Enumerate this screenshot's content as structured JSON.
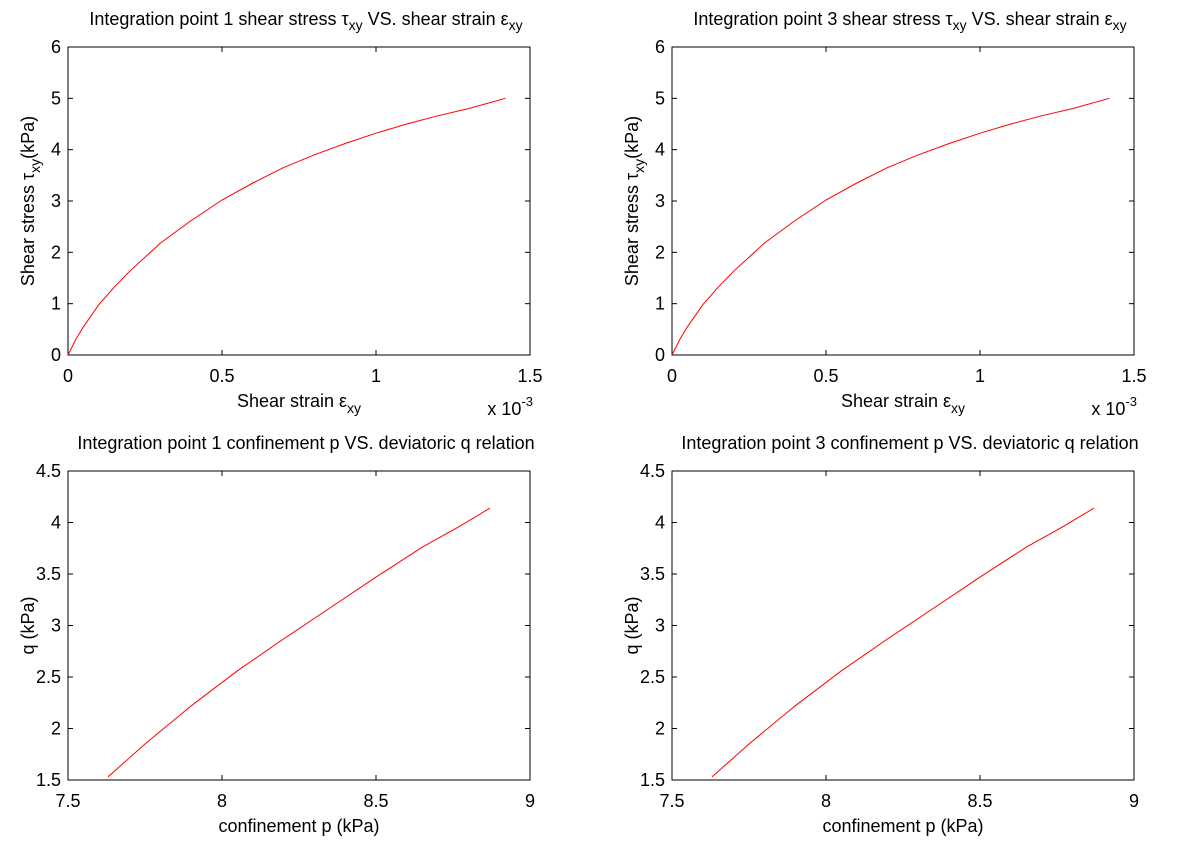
{
  "chart_data": [
    {
      "type": "line",
      "title": {
        "prefix": "Integration point 1 shear stress ",
        "sym1": "τ",
        "sub1": "xy",
        "mid": " VS. shear strain ",
        "sym2": "ε",
        "sub2": "xy"
      },
      "xlabel": {
        "text": "Shear strain ",
        "sym": "ε",
        "sub": "xy"
      },
      "ylabel": {
        "text": "Shear stress ",
        "sym": "τ",
        "sub": "xy",
        "unit": "(kPa)"
      },
      "x_multiplier": {
        "text": "x 10",
        "exp": "-3"
      },
      "xlim": [
        0,
        1.5
      ],
      "ylim": [
        0,
        6
      ],
      "xticks": [
        0,
        0.5,
        1,
        1.5
      ],
      "xtick_labels": [
        "0",
        "0.5",
        "1",
        "1.5"
      ],
      "yticks": [
        0,
        1,
        2,
        3,
        4,
        5,
        6
      ],
      "ytick_labels": [
        "0",
        "1",
        "2",
        "3",
        "4",
        "5",
        "6"
      ],
      "line_color": "#ff0000",
      "series": [
        {
          "x": [
            0,
            0.025,
            0.05,
            0.1,
            0.15,
            0.2,
            0.3,
            0.4,
            0.5,
            0.6,
            0.7,
            0.8,
            0.9,
            1.0,
            1.1,
            1.2,
            1.3,
            1.42
          ],
          "y": [
            0,
            0.3,
            0.55,
            0.98,
            1.32,
            1.63,
            2.18,
            2.62,
            3.02,
            3.35,
            3.65,
            3.9,
            4.12,
            4.32,
            4.5,
            4.66,
            4.8,
            5.0
          ]
        }
      ]
    },
    {
      "type": "line",
      "title": {
        "prefix": "Integration point 3 shear stress ",
        "sym1": "τ",
        "sub1": "xy",
        "mid": " VS. shear strain ",
        "sym2": "ε",
        "sub2": "xy"
      },
      "xlabel": {
        "text": "Shear strain ",
        "sym": "ε",
        "sub": "xy"
      },
      "ylabel": {
        "text": "Shear stress ",
        "sym": "τ",
        "sub": "xy",
        "unit": "(kPa)"
      },
      "x_multiplier": {
        "text": "x 10",
        "exp": "-3"
      },
      "xlim": [
        0,
        1.5
      ],
      "ylim": [
        0,
        6
      ],
      "xticks": [
        0,
        0.5,
        1,
        1.5
      ],
      "xtick_labels": [
        "0",
        "0.5",
        "1",
        "1.5"
      ],
      "yticks": [
        0,
        1,
        2,
        3,
        4,
        5,
        6
      ],
      "ytick_labels": [
        "0",
        "1",
        "2",
        "3",
        "4",
        "5",
        "6"
      ],
      "line_color": "#ff0000",
      "series": [
        {
          "x": [
            0,
            0.025,
            0.05,
            0.1,
            0.15,
            0.2,
            0.3,
            0.4,
            0.5,
            0.6,
            0.7,
            0.8,
            0.9,
            1.0,
            1.1,
            1.2,
            1.3,
            1.42
          ],
          "y": [
            0,
            0.3,
            0.55,
            0.98,
            1.32,
            1.63,
            2.18,
            2.62,
            3.02,
            3.35,
            3.65,
            3.9,
            4.12,
            4.32,
            4.5,
            4.66,
            4.8,
            5.0
          ]
        }
      ]
    },
    {
      "type": "line",
      "title": {
        "prefix": "Integration point 1 confinement p VS. deviatoric q relation"
      },
      "xlabel": {
        "text": "confinement p (kPa)"
      },
      "ylabel": {
        "text": "q (kPa)"
      },
      "xlim": [
        7.5,
        9
      ],
      "ylim": [
        1.5,
        4.5
      ],
      "xticks": [
        7.5,
        8,
        8.5,
        9
      ],
      "xtick_labels": [
        "7.5",
        "8",
        "8.5",
        "9"
      ],
      "yticks": [
        1.5,
        2,
        2.5,
        3,
        3.5,
        4,
        4.5
      ],
      "ytick_labels": [
        "1.5",
        "2",
        "2.5",
        "3",
        "3.5",
        "4",
        "4.5"
      ],
      "line_color": "#ff0000",
      "series": [
        {
          "x": [
            7.63,
            7.75,
            7.9,
            8.05,
            8.2,
            8.35,
            8.5,
            8.65,
            8.77,
            8.87
          ],
          "y": [
            1.53,
            1.85,
            2.22,
            2.56,
            2.87,
            3.17,
            3.47,
            3.76,
            3.96,
            4.14
          ]
        }
      ]
    },
    {
      "type": "line",
      "title": {
        "prefix": "Integration point 3 confinement p VS. deviatoric q relation"
      },
      "xlabel": {
        "text": "confinement p (kPa)"
      },
      "ylabel": {
        "text": "q (kPa)"
      },
      "xlim": [
        7.5,
        9
      ],
      "ylim": [
        1.5,
        4.5
      ],
      "xticks": [
        7.5,
        8,
        8.5,
        9
      ],
      "xtick_labels": [
        "7.5",
        "8",
        "8.5",
        "9"
      ],
      "yticks": [
        1.5,
        2,
        2.5,
        3,
        3.5,
        4,
        4.5
      ],
      "ytick_labels": [
        "1.5",
        "2",
        "2.5",
        "3",
        "3.5",
        "4",
        "4.5"
      ],
      "line_color": "#ff0000",
      "series": [
        {
          "x": [
            7.63,
            7.75,
            7.9,
            8.05,
            8.2,
            8.35,
            8.5,
            8.65,
            8.77,
            8.87
          ],
          "y": [
            1.53,
            1.85,
            2.22,
            2.56,
            2.87,
            3.17,
            3.47,
            3.76,
            3.96,
            4.14
          ]
        }
      ]
    }
  ]
}
